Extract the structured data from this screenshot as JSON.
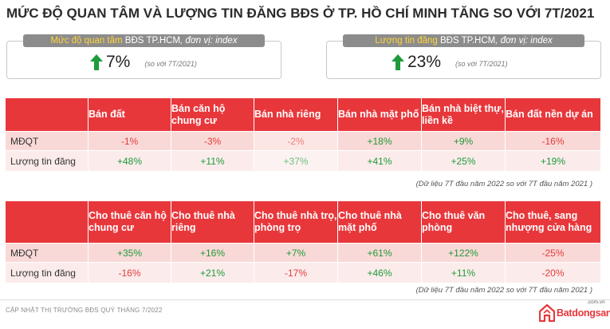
{
  "title": "MỨC ĐỘ QUAN TÂM VÀ LƯỢNG TIN ĐĂNG BĐS Ở TP. HỒ CHÍ MINH TĂNG SO VỚI 7T/2021",
  "kpis": [
    {
      "label_highlight": "Mức độ quan tâm",
      "label_city": " BĐS TP.HCM",
      "label_unit": ", đơn vị: index",
      "value": "7%",
      "note": "(so với 7T/2021)",
      "icon": "green-up-arrow"
    },
    {
      "label_highlight": "Lượng tin đăng",
      "label_city": " BĐS TP.HCM",
      "label_unit": ", đơn vị: index",
      "value": "23%",
      "note": "(so với 7T/2021)",
      "icon": "green-up-arrow"
    }
  ],
  "tables": [
    {
      "headers": [
        "Bán đất",
        "Bán căn hộ chung cư",
        "Bán nhà riêng",
        "Bán nhà mặt phố",
        "Bán nhà biệt thự, liền kề",
        "Bán đất nền dự án"
      ],
      "rows": [
        {
          "label": "MĐQT",
          "values": [
            "-1%",
            "-3%",
            "-2%",
            "+18%",
            "+9%",
            "-16%"
          ]
        },
        {
          "label": "Lượng tin đăng",
          "values": [
            "+48%",
            "+11%",
            "+37%",
            "+41%",
            "+25%",
            "+19%"
          ]
        }
      ],
      "note": "(Dữ liệu 7T đầu năm 2022 so với 7T đầu năm 2021 )"
    },
    {
      "headers": [
        "Cho thuê căn hộ chung cư",
        "Cho thuê nhà riêng",
        "Cho thuê nhà trọ, phòng trọ",
        "Cho thuê nhà mặt phố",
        "Cho thuê văn phòng",
        "Cho thuê, sang nhượng cửa hàng"
      ],
      "rows": [
        {
          "label": "MĐQT",
          "values": [
            "+35%",
            "+16%",
            "+7%",
            "+61%",
            "+122%",
            "-25%"
          ]
        },
        {
          "label": "Lượng tin đăng",
          "values": [
            "-16%",
            "+21%",
            "-17%",
            "+46%",
            "+11%",
            "-20%"
          ]
        }
      ],
      "note": "(Dữ liệu 7T đầu năm 2022 so với 7T đầu năm 2021 )"
    }
  ],
  "colors": {
    "header_red": "#e8373b",
    "positive": "#1f9a3a",
    "negative": "#e23b3b",
    "kpi_head_bg": "#8c8c8c",
    "highlight_yellow": "#ffd33a"
  },
  "footer": "CẬP NHẬT THỊ TRƯỜNG BĐS QUÝ THÁNG 7/2022",
  "logo": {
    "text": "Batdongsan",
    "domain": ".com.vn",
    "icon": "house-logo-icon"
  }
}
